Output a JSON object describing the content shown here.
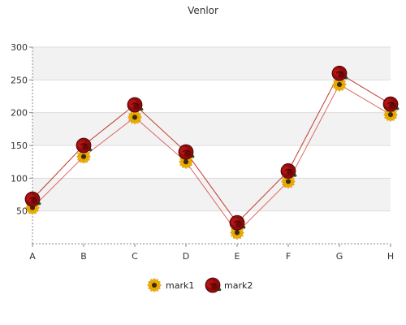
{
  "chart_data": {
    "type": "line",
    "title": "Venlor",
    "categories": [
      "A",
      "B",
      "C",
      "D",
      "E",
      "F",
      "G",
      "H"
    ],
    "ylim": [
      0,
      300
    ],
    "yticks": [
      50,
      100,
      150,
      200,
      250,
      300
    ],
    "grid": true,
    "legend_position": "bottom",
    "series": [
      {
        "name": "mark1",
        "values": [
          55,
          133,
          193,
          125,
          17,
          95,
          243,
          197
        ],
        "color": "#e06666",
        "marker": "sunflower-icon"
      },
      {
        "name": "mark2",
        "values": [
          68,
          150,
          212,
          140,
          32,
          111,
          260,
          213
        ],
        "color": "#c0392b",
        "marker": "rose-icon"
      }
    ]
  }
}
